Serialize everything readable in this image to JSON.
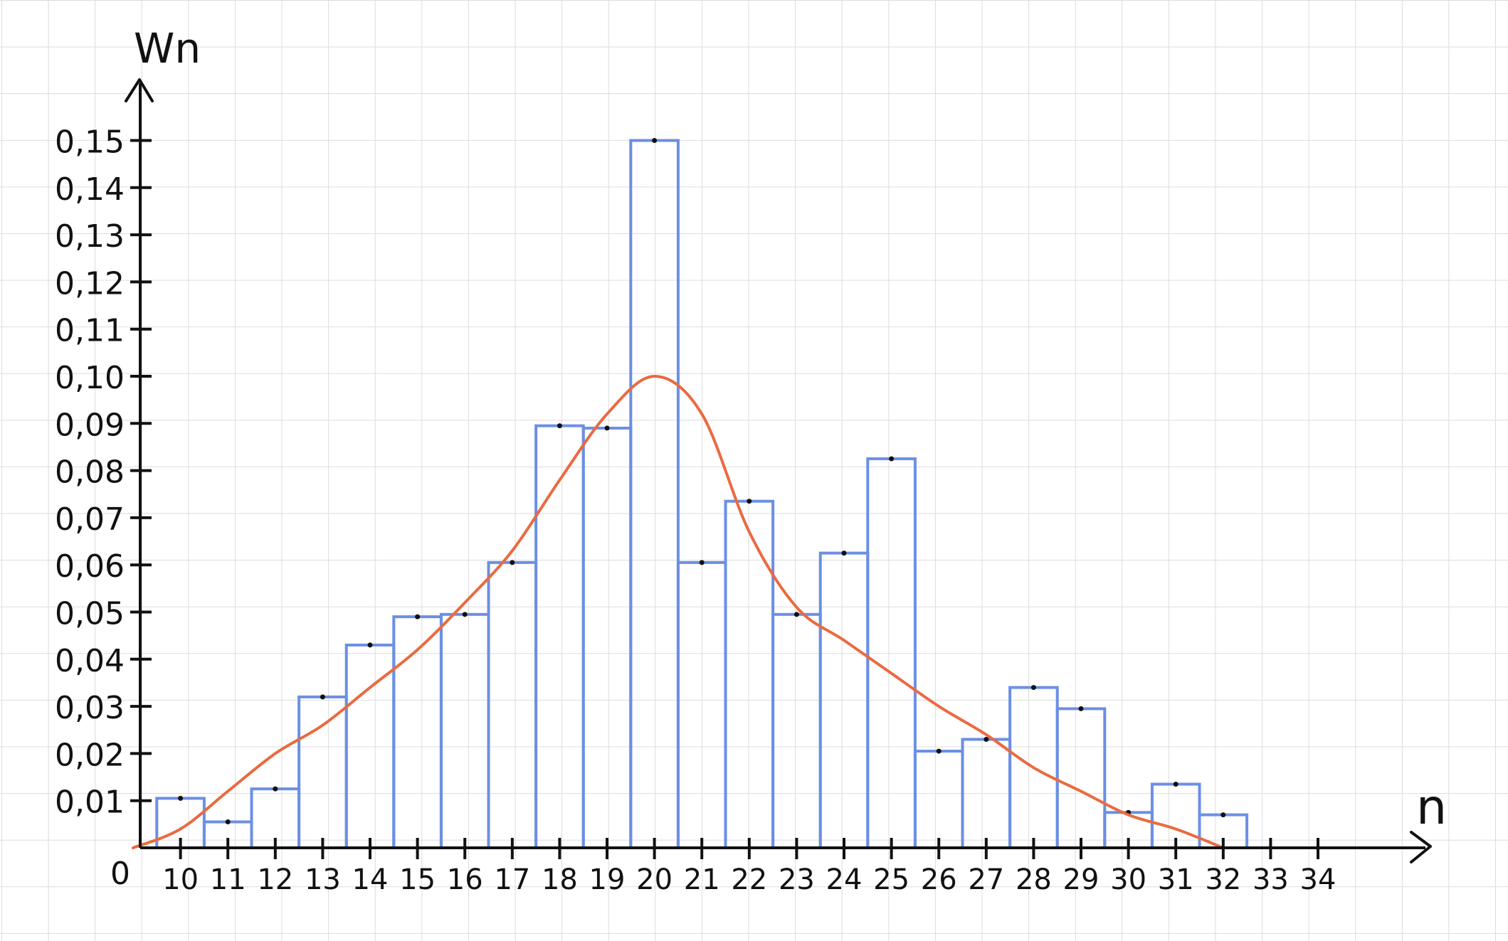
{
  "chart_data": {
    "type": "bar",
    "ylabel": "Wn",
    "xlabel": "n",
    "origin_label": "0",
    "y_tick_labels": [
      "0,01",
      "0,02",
      "0,03",
      "0,04",
      "0,05",
      "0,06",
      "0,07",
      "0,08",
      "0,09",
      "0,10",
      "0,11",
      "0,12",
      "0,13",
      "0,14",
      "0,15"
    ],
    "y_ticks": [
      0.01,
      0.02,
      0.03,
      0.04,
      0.05,
      0.06,
      0.07,
      0.08,
      0.09,
      0.1,
      0.11,
      0.12,
      0.13,
      0.14,
      0.15
    ],
    "x_tick_labels": [
      "10",
      "11",
      "12",
      "13",
      "14",
      "15",
      "16",
      "17",
      "18",
      "19",
      "20",
      "21",
      "22",
      "23",
      "24",
      "25",
      "26",
      "27",
      "28",
      "29",
      "30",
      "31",
      "32",
      "33",
      "34"
    ],
    "ylim": [
      0,
      0.15
    ],
    "bars": [
      {
        "from": 9.5,
        "to": 10.5,
        "value": 0.0105
      },
      {
        "from": 10.5,
        "to": 11.5,
        "value": 0.0055
      },
      {
        "from": 11.5,
        "to": 12.5,
        "value": 0.0125
      },
      {
        "from": 12.5,
        "to": 13.5,
        "value": 0.032
      },
      {
        "from": 13.5,
        "to": 14.5,
        "value": 0.043
      },
      {
        "from": 14.5,
        "to": 15.5,
        "value": 0.049
      },
      {
        "from": 15.5,
        "to": 16.5,
        "value": 0.0495
      },
      {
        "from": 16.5,
        "to": 17.5,
        "value": 0.0605
      },
      {
        "from": 17.5,
        "to": 18.5,
        "value": 0.0895
      },
      {
        "from": 18.5,
        "to": 19.5,
        "value": 0.089
      },
      {
        "from": 19.5,
        "to": 20.5,
        "value": 0.15
      },
      {
        "from": 20.5,
        "to": 21.5,
        "value": 0.0605
      },
      {
        "from": 21.5,
        "to": 22.5,
        "value": 0.0735
      },
      {
        "from": 22.5,
        "to": 23.5,
        "value": 0.0495
      },
      {
        "from": 23.5,
        "to": 24.5,
        "value": 0.0625
      },
      {
        "from": 24.5,
        "to": 25.5,
        "value": 0.0825
      },
      {
        "from": 25.5,
        "to": 26.5,
        "value": 0.0205
      },
      {
        "from": 26.5,
        "to": 27.5,
        "value": 0.023
      },
      {
        "from": 27.5,
        "to": 28.5,
        "value": 0.034
      },
      {
        "from": 28.5,
        "to": 29.5,
        "value": 0.0295
      },
      {
        "from": 29.5,
        "to": 30.5,
        "value": 0.0075
      },
      {
        "from": 30.5,
        "to": 31.5,
        "value": 0.0135
      },
      {
        "from": 31.5,
        "to": 32.5,
        "value": 0.007
      }
    ],
    "curve": {
      "x": [
        9,
        10,
        11,
        12,
        13,
        14,
        15,
        16,
        17,
        18,
        19,
        20,
        21,
        22,
        23,
        24,
        25,
        26,
        27,
        28,
        29,
        30,
        31,
        32
      ],
      "y": [
        0,
        0.004,
        0.012,
        0.02,
        0.026,
        0.034,
        0.042,
        0.052,
        0.063,
        0.078,
        0.092,
        0.1,
        0.092,
        0.067,
        0.051,
        0.044,
        0.037,
        0.03,
        0.024,
        0.017,
        0.012,
        0.007,
        0.004,
        0
      ]
    },
    "colors": {
      "bars": "#6b8fe3",
      "curve": "#ea6a40",
      "axis": "#111111"
    },
    "grid": true
  }
}
